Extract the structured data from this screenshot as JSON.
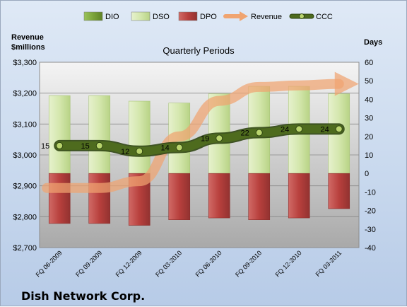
{
  "company": "Dish Network Corp.",
  "chart_data": {
    "type": "bar",
    "title": "Quarterly Periods",
    "left_axis_title": [
      "Revenue",
      "$millions"
    ],
    "right_axis_title": "Days",
    "categories": [
      "FQ 06-2009",
      "FQ 09-2009",
      "FQ 12-2009",
      "FQ 03-2010",
      "FQ 06-2010",
      "FQ 09-2010",
      "FQ 12-2010",
      "FQ 03-2011"
    ],
    "left_axis": {
      "min": 2700,
      "max": 3300,
      "step": 100,
      "tick_labels": [
        "$2,700",
        "$2,800",
        "$2,900",
        "$3,000",
        "$3,100",
        "$3,200",
        "$3,300"
      ]
    },
    "right_axis": {
      "min": -40,
      "max": 60,
      "step": 10,
      "tick_labels": [
        "-40",
        "-30",
        "-20",
        "-10",
        "0",
        "10",
        "20",
        "30",
        "40",
        "50",
        "60"
      ]
    },
    "series": [
      {
        "name": "DIO",
        "type": "stacked-bar",
        "axis": "right",
        "color": "#7ba33a",
        "values": [
          0,
          0,
          0,
          0,
          0,
          0,
          0,
          0
        ]
      },
      {
        "name": "DSO",
        "type": "stacked-bar",
        "axis": "right",
        "color": "#cfe3a6",
        "values": [
          42,
          42,
          39,
          38,
          43,
          47,
          47,
          43
        ]
      },
      {
        "name": "DPO",
        "type": "negative-bar",
        "axis": "right",
        "color": "#c04b48",
        "values": [
          -27,
          -27,
          -28,
          -25,
          -24,
          -25,
          -24,
          -19
        ]
      },
      {
        "name": "Revenue",
        "type": "arrow-line",
        "axis": "left",
        "color": "#f0a470",
        "values": [
          2893,
          2893,
          2915,
          3060,
          3175,
          3220,
          3225,
          3230
        ]
      },
      {
        "name": "CCC",
        "type": "line",
        "axis": "right",
        "color": "#4e6b1e",
        "values": [
          15,
          15,
          12,
          14,
          19,
          22,
          24,
          24
        ],
        "labels": [
          "15",
          "15",
          "12",
          "14",
          "19",
          "22",
          "24",
          "24"
        ]
      }
    ],
    "legend": [
      "DIO",
      "DSO",
      "DPO",
      "Revenue",
      "CCC"
    ],
    "legend_position": "top",
    "grid": true
  }
}
